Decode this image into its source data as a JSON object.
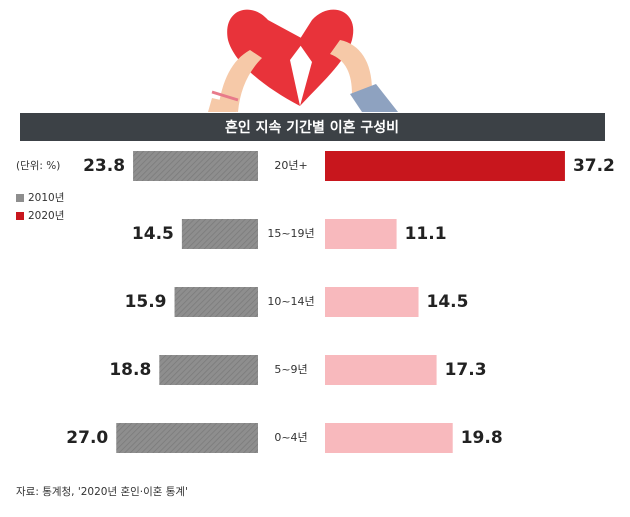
{
  "chart_data": {
    "type": "butterfly-bar",
    "title": "혼인 지속 기간별 이혼 구성비",
    "unit": "(단위: %)",
    "source": "자료: 통계청, '2020년 혼인·이혼 통계'",
    "categories": [
      "20년+",
      "15~19년",
      "10~14년",
      "5~9년",
      "0~4년"
    ],
    "series": [
      {
        "name": "2010년",
        "color": "#8e8e8e",
        "values": [
          23.8,
          14.5,
          15.9,
          18.8,
          27.0
        ],
        "value_labels": [
          "23.8",
          "14.5",
          "15.9",
          "18.8",
          "27.0"
        ]
      },
      {
        "name": "2020년",
        "color": "#c8161d",
        "colors": [
          "#c8161d",
          "#f8b9bd",
          "#f8b9bd",
          "#f8b9bd",
          "#f8b9bd"
        ],
        "values": [
          37.2,
          11.1,
          14.5,
          17.3,
          19.8
        ],
        "value_labels": [
          "37.2",
          "11.1",
          "14.5",
          "17.3",
          "19.8"
        ]
      }
    ]
  }
}
